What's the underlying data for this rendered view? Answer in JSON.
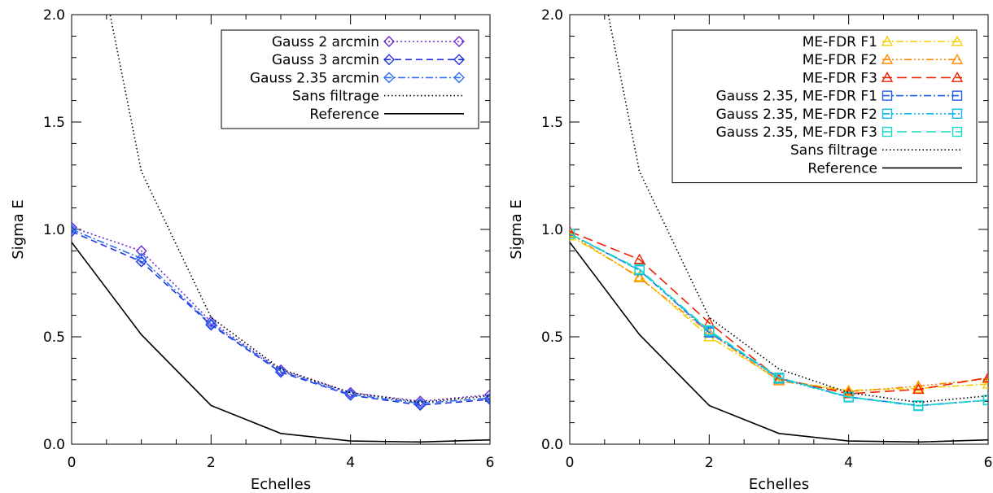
{
  "chart_data": [
    {
      "type": "line",
      "xlabel": "Echelles",
      "ylabel": "Sigma E",
      "xlim": [
        0,
        6
      ],
      "ylim": [
        0,
        2
      ],
      "x_ticks": [
        "0",
        "2",
        "4",
        "6"
      ],
      "y_ticks": [
        "0.0",
        "0.5",
        "1.0",
        "1.5",
        "2.0"
      ],
      "grid": false,
      "legend_position": "top-right",
      "x": [
        0,
        1,
        2,
        3,
        4,
        5,
        6
      ],
      "series": [
        {
          "name": "Gauss 2 arcmin",
          "values": [
            1.01,
            0.9,
            0.57,
            0.345,
            0.24,
            0.2,
            0.23
          ],
          "color": "#6a2bd6",
          "dash": "2,3",
          "marker": "diamond"
        },
        {
          "name": "Gauss 3 arcmin",
          "values": [
            0.99,
            0.85,
            0.555,
            0.335,
            0.228,
            0.182,
            0.208
          ],
          "color": "#2233dd",
          "dash": "8,5",
          "marker": "diamond"
        },
        {
          "name": "Gauss 2.35 arcmin",
          "values": [
            1.0,
            0.865,
            0.56,
            0.34,
            0.232,
            0.19,
            0.215
          ],
          "color": "#2f6ef0",
          "dash": "9,3,2,3",
          "marker": "diamond"
        },
        {
          "name": "Sans filtrage",
          "values": [
            2.9,
            1.27,
            0.59,
            0.35,
            0.24,
            0.195,
            0.225
          ],
          "color": "#000000",
          "dash": "1.5,3",
          "marker": "none"
        },
        {
          "name": "Reference",
          "values": [
            0.94,
            0.51,
            0.18,
            0.05,
            0.015,
            0.01,
            0.02
          ],
          "color": "#000000",
          "dash": "",
          "marker": "none"
        }
      ]
    },
    {
      "type": "line",
      "xlabel": "Echelles",
      "ylabel": "Sigma E",
      "xlim": [
        0,
        6
      ],
      "ylim": [
        0,
        2
      ],
      "x_ticks": [
        "0",
        "2",
        "4",
        "6"
      ],
      "y_ticks": [
        "0.0",
        "0.5",
        "1.0",
        "1.5",
        "2.0"
      ],
      "grid": false,
      "legend_position": "top-right",
      "x": [
        0,
        1,
        2,
        3,
        4,
        5,
        6
      ],
      "series": [
        {
          "name": "ME-FDR F1",
          "values": [
            0.97,
            0.78,
            0.5,
            0.3,
            0.25,
            0.26,
            0.28
          ],
          "color": "#f2d000",
          "dash": "9,3,2,3",
          "marker": "triangle"
        },
        {
          "name": "ME-FDR F2",
          "values": [
            0.98,
            0.775,
            0.52,
            0.295,
            0.245,
            0.27,
            0.305
          ],
          "color": "#ff8a00",
          "dash": "9,3,2,3,2,3,2,3",
          "marker": "triangle"
        },
        {
          "name": "ME-FDR F3",
          "values": [
            0.99,
            0.86,
            0.565,
            0.305,
            0.235,
            0.255,
            0.31
          ],
          "color": "#ee2200",
          "dash": "12,6",
          "marker": "triangle"
        },
        {
          "name": "Gauss 2.35, ME-FDR F1",
          "values": [
            0.98,
            0.81,
            0.52,
            0.31,
            0.22,
            0.18,
            0.205
          ],
          "color": "#1f5fe8",
          "dash": "9,3,2,3",
          "marker": "square"
        },
        {
          "name": "Gauss 2.35, ME-FDR F2",
          "values": [
            0.98,
            0.81,
            0.525,
            0.305,
            0.218,
            0.178,
            0.205
          ],
          "color": "#10b8f0",
          "dash": "9,3,2,3,2,3,2,3",
          "marker": "square"
        },
        {
          "name": "Gauss 2.35, ME-FDR F3",
          "values": [
            0.98,
            0.815,
            0.53,
            0.31,
            0.22,
            0.18,
            0.205
          ],
          "color": "#18d8c8",
          "dash": "12,6",
          "marker": "square"
        },
        {
          "name": "Sans filtrage",
          "values": [
            2.9,
            1.27,
            0.59,
            0.35,
            0.24,
            0.195,
            0.225
          ],
          "color": "#000000",
          "dash": "1.5,3",
          "marker": "none"
        },
        {
          "name": "Reference",
          "values": [
            0.94,
            0.51,
            0.18,
            0.05,
            0.015,
            0.01,
            0.02
          ],
          "color": "#000000",
          "dash": "",
          "marker": "none"
        }
      ]
    }
  ]
}
